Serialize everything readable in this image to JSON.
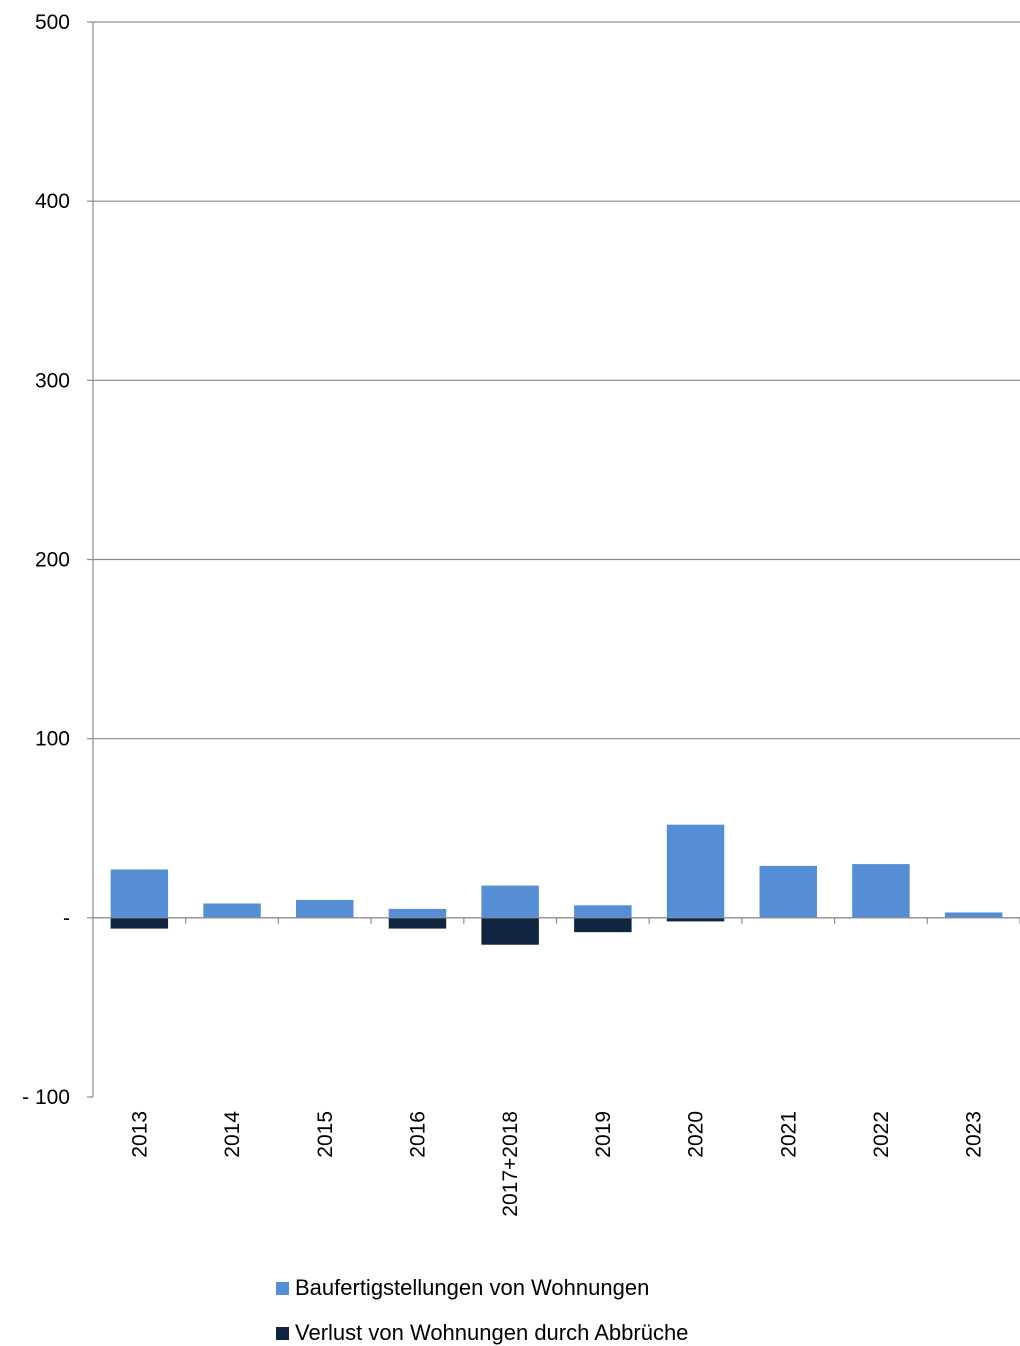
{
  "chart_data": {
    "type": "bar",
    "categories": [
      "2013",
      "2014",
      "2015",
      "2016",
      "2017+2018",
      "2019",
      "2020",
      "2021",
      "2022",
      "2023"
    ],
    "series": [
      {
        "name": "Baufertigstellungen von Wohnungen",
        "color": "#558ED5",
        "values": [
          27,
          8,
          10,
          5,
          18,
          7,
          52,
          29,
          30,
          3
        ]
      },
      {
        "name": "Verlust von Wohnungen durch Abbrüche",
        "color": "#10253F",
        "values": [
          -6,
          0,
          0,
          -6,
          -15,
          -8,
          -2,
          0,
          0,
          0
        ]
      }
    ],
    "ylim": [
      -100,
      500
    ],
    "yticks": [
      {
        "value": 500,
        "label": "500"
      },
      {
        "value": 400,
        "label": "400"
      },
      {
        "value": 300,
        "label": "300"
      },
      {
        "value": 200,
        "label": "200"
      },
      {
        "value": 100,
        "label": "100"
      },
      {
        "value": 0,
        "label": "-"
      },
      {
        "value": -100,
        "label": "- 100"
      }
    ],
    "grid": true,
    "stacked": true,
    "legend_position": "bottom",
    "xlabel": "",
    "ylabel": "",
    "title": ""
  }
}
